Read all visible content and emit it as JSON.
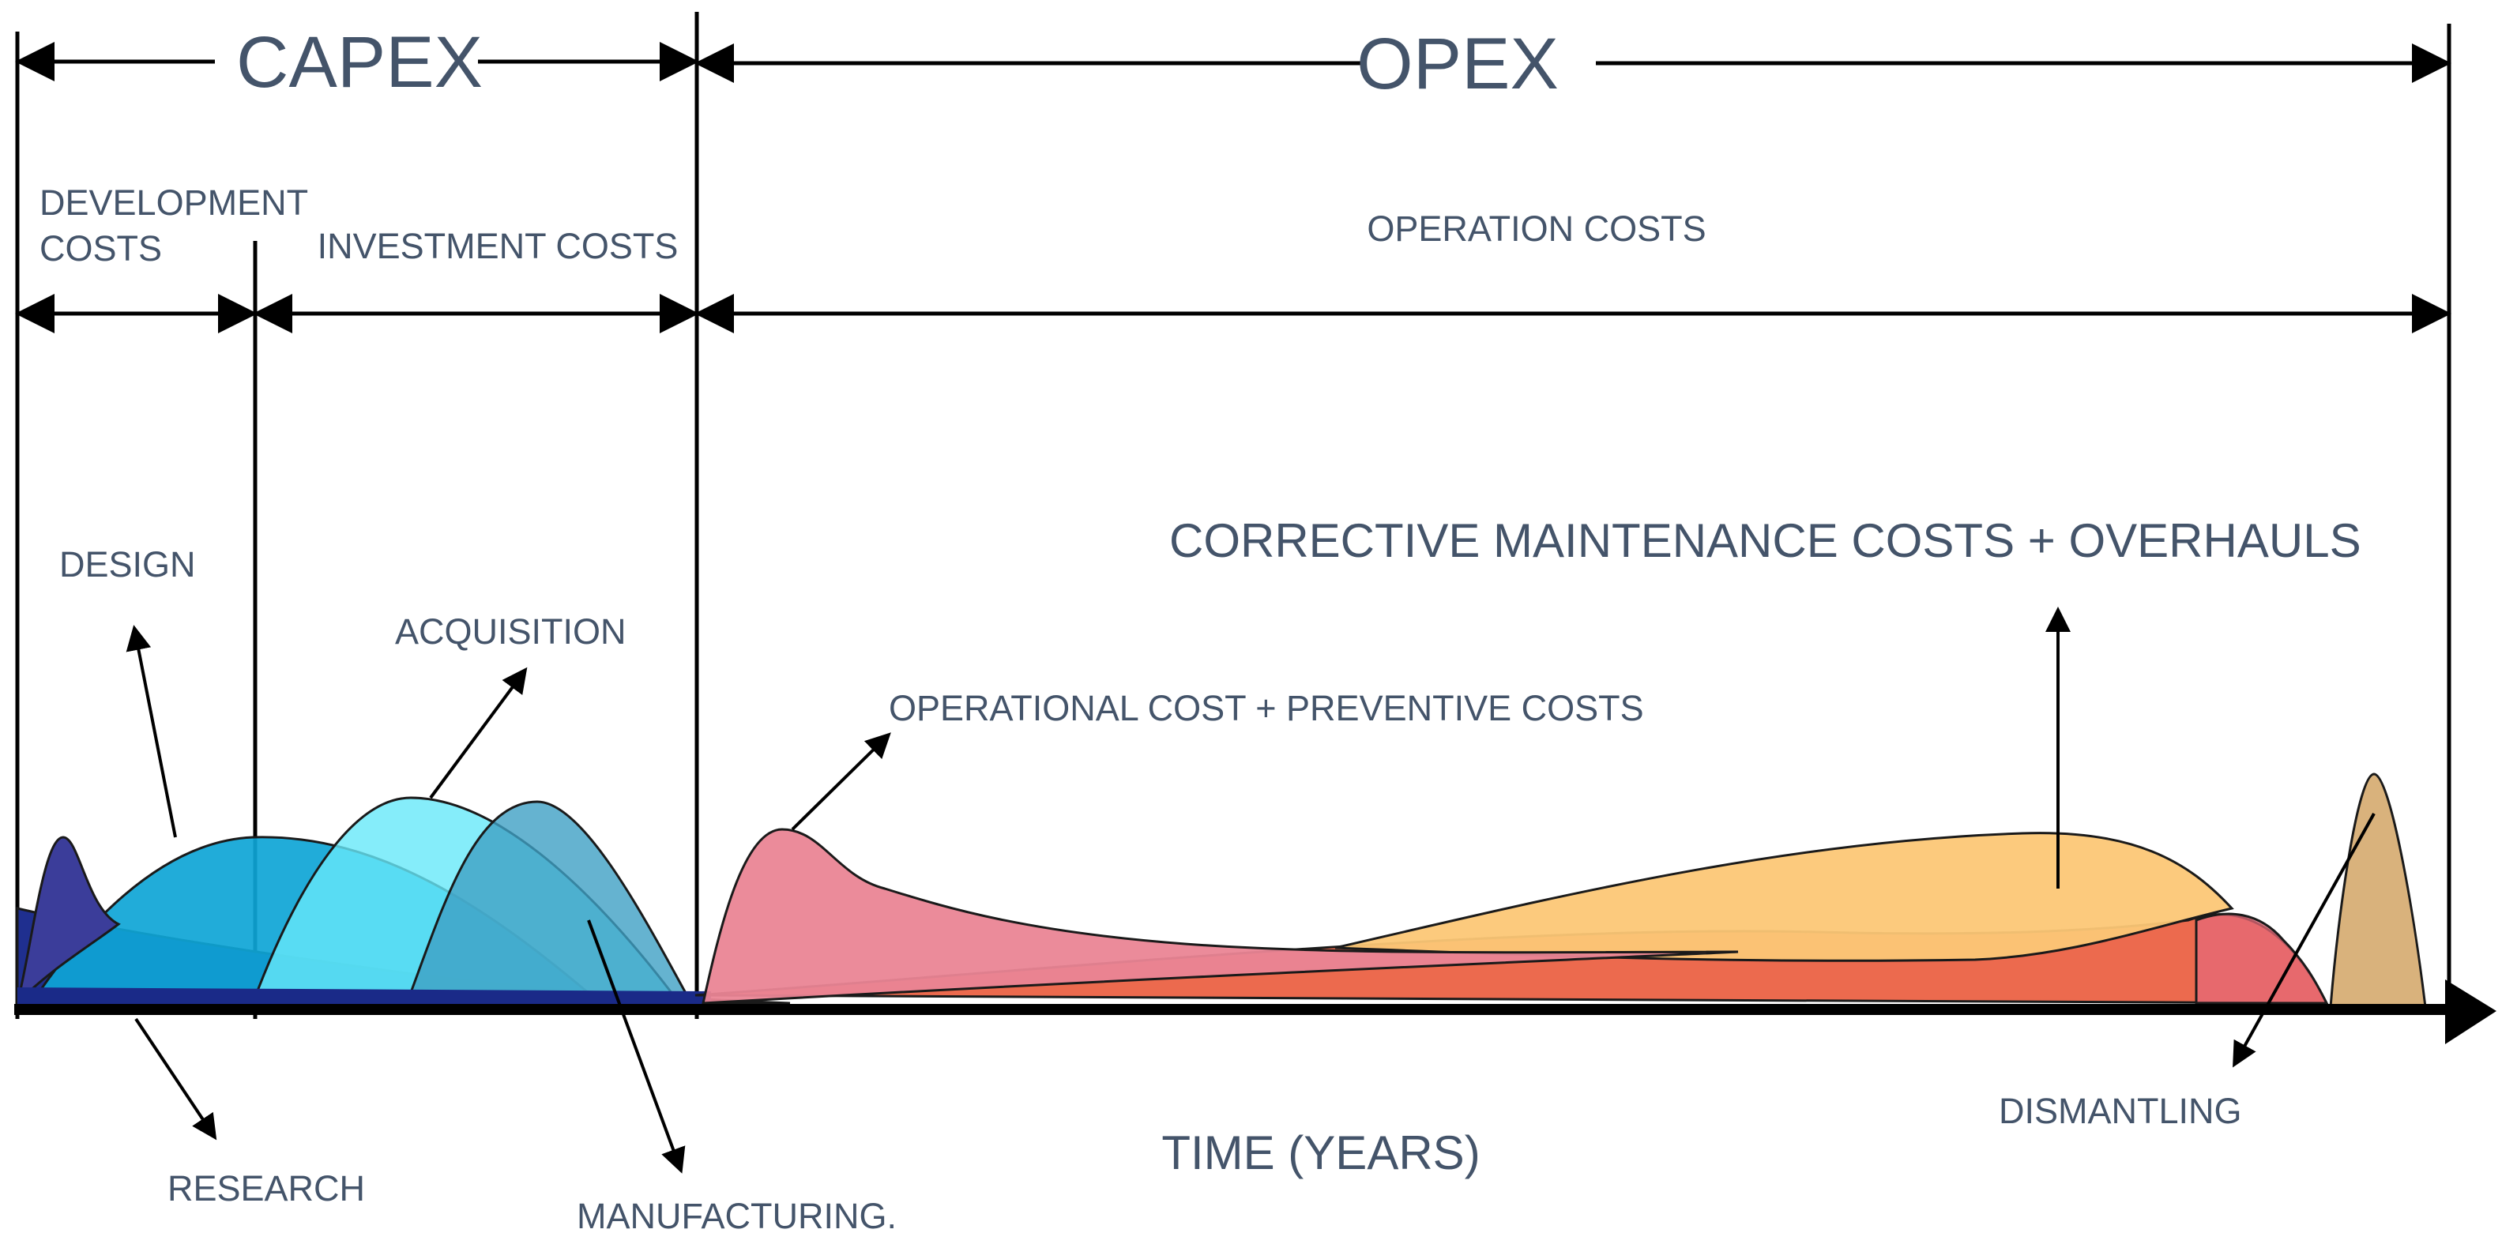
{
  "sections": {
    "capex": "CAPEX",
    "opex": "OPEX"
  },
  "subsections": {
    "development_costs_line1": "DEVELOPMENT",
    "development_costs_line2": "COSTS",
    "investment_costs": "INVESTMENT COSTS",
    "operation_costs": "OPERATION COSTS"
  },
  "labels": {
    "design": "DESIGN",
    "acquisition": "ACQUISITION",
    "research": "RESEARCH",
    "manufacturing": "MANUFACTURING.",
    "operational": "OPERATIONAL COST + PREVENTIVE COSTS",
    "corrective": "CORRECTIVE MAINTENANCE  COSTS + OVERHAULS",
    "dismantling": "DISMANTLING"
  },
  "axis": {
    "x_label": "TIME (YEARS)"
  },
  "colors": {
    "text": "#44546a",
    "research": "#1f2f8f",
    "design": "#0ea5d6",
    "acquisition": "#67e8f9",
    "manufacturing": "#4aa3c7",
    "early_peak": "#3b3d9a",
    "operational": "#ea8595",
    "corrective": "#fcc776",
    "base_opex": "#ec6a4e",
    "dismantling": "#d9b27c"
  }
}
